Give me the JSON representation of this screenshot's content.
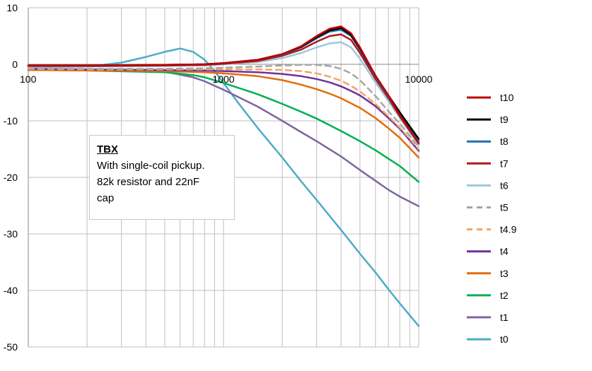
{
  "chart_data": {
    "type": "line",
    "x_scale": "log",
    "xlim": [
      100,
      10000
    ],
    "ylim": [
      -50,
      10
    ],
    "x_ticks": [
      100,
      1000,
      10000
    ],
    "x_tick_labels": [
      "100",
      "1000",
      "10000"
    ],
    "y_ticks": [
      10,
      0,
      -10,
      -20,
      -30,
      -40,
      -50
    ],
    "y_tick_labels": [
      "10",
      "0",
      "-10",
      "-20",
      "-30",
      "-40",
      "-50"
    ],
    "grid": true,
    "legend_position": "right",
    "annotation": {
      "title": "TBX",
      "lines": [
        "With single-coil pickup.",
        "82k resistor and 22nF",
        "cap"
      ]
    },
    "series": [
      {
        "name": "t10",
        "color": "#c00000",
        "dash": false,
        "x": [
          100,
          200,
          500,
          800,
          1000,
          1500,
          2000,
          2500,
          3000,
          3500,
          4000,
          4500,
          5000,
          6000,
          7000,
          8000,
          10000
        ],
        "y": [
          -0.2,
          -0.2,
          -0.1,
          0.0,
          0.2,
          0.8,
          1.8,
          3.2,
          5.0,
          6.3,
          6.7,
          5.5,
          3.0,
          -2.0,
          -5.5,
          -9.0,
          -14.0
        ]
      },
      {
        "name": "t9",
        "color": "#000000",
        "dash": false,
        "x": [
          100,
          200,
          500,
          800,
          1000,
          1500,
          2000,
          2500,
          3000,
          3500,
          4000,
          4500,
          5000,
          6000,
          7000,
          8000,
          10000
        ],
        "y": [
          -0.2,
          -0.2,
          -0.1,
          0.0,
          0.2,
          0.8,
          1.8,
          3.1,
          4.8,
          6.0,
          6.4,
          5.2,
          2.8,
          -2.0,
          -5.5,
          -8.5,
          -13.2
        ]
      },
      {
        "name": "t8",
        "color": "#1f6fb4",
        "dash": false,
        "x": [
          100,
          200,
          500,
          800,
          1000,
          1500,
          2000,
          2500,
          3000,
          3500,
          4000,
          4500,
          5000,
          6000,
          7000,
          8000,
          10000
        ],
        "y": [
          -0.2,
          -0.2,
          -0.1,
          0.0,
          0.2,
          0.8,
          1.7,
          3.0,
          4.6,
          5.8,
          6.1,
          5.0,
          2.6,
          -2.2,
          -5.7,
          -8.8,
          -13.6
        ]
      },
      {
        "name": "t7",
        "color": "#b01818",
        "dash": false,
        "x": [
          100,
          200,
          500,
          800,
          1000,
          1500,
          2000,
          2500,
          3000,
          3500,
          4000,
          4500,
          5000,
          6000,
          7000,
          8000,
          10000
        ],
        "y": [
          -0.3,
          -0.3,
          -0.2,
          -0.1,
          0.1,
          0.6,
          1.5,
          2.6,
          4.0,
          5.0,
          5.3,
          4.3,
          2.0,
          -2.6,
          -6.0,
          -9.2,
          -14.0
        ]
      },
      {
        "name": "t6",
        "color": "#9dc8e0",
        "dash": false,
        "x": [
          100,
          200,
          500,
          800,
          1000,
          1500,
          2000,
          2500,
          3000,
          3500,
          4000,
          4500,
          5000,
          6000,
          7000,
          8000,
          10000
        ],
        "y": [
          -0.4,
          -0.4,
          -0.3,
          -0.2,
          0.0,
          0.4,
          1.1,
          2.0,
          3.0,
          3.7,
          3.9,
          3.0,
          1.0,
          -3.2,
          -6.5,
          -9.5,
          -14.3
        ]
      },
      {
        "name": "t5",
        "color": "#a6a6a6",
        "dash": true,
        "x": [
          100,
          200,
          500,
          800,
          1000,
          1500,
          2000,
          2500,
          3000,
          3500,
          4000,
          4500,
          5000,
          6000,
          7000,
          8000,
          10000
        ],
        "y": [
          -0.7,
          -0.8,
          -0.8,
          -0.7,
          -0.6,
          -0.4,
          -0.2,
          -0.1,
          -0.1,
          -0.3,
          -0.8,
          -1.6,
          -2.8,
          -5.6,
          -8.3,
          -10.5,
          -14.6
        ]
      },
      {
        "name": "t4.9",
        "color": "#f4a460",
        "dash": true,
        "x": [
          100,
          200,
          500,
          800,
          1000,
          1500,
          2000,
          2500,
          3000,
          3500,
          4000,
          4500,
          5000,
          6000,
          7000,
          8000,
          10000
        ],
        "y": [
          -0.8,
          -0.9,
          -0.9,
          -0.9,
          -0.9,
          -0.9,
          -1.0,
          -1.2,
          -1.6,
          -2.2,
          -2.9,
          -3.8,
          -4.8,
          -7.0,
          -9.2,
          -11.2,
          -15.0
        ]
      },
      {
        "name": "t4",
        "color": "#7030a0",
        "dash": false,
        "x": [
          100,
          200,
          500,
          800,
          1000,
          1500,
          2000,
          2500,
          3000,
          3500,
          4000,
          4500,
          5000,
          6000,
          7000,
          8000,
          10000
        ],
        "y": [
          -0.8,
          -0.9,
          -1.0,
          -1.1,
          -1.2,
          -1.4,
          -1.7,
          -2.1,
          -2.6,
          -3.2,
          -3.9,
          -4.7,
          -5.5,
          -7.4,
          -9.5,
          -11.4,
          -15.3
        ]
      },
      {
        "name": "t3",
        "color": "#e46c0a",
        "dash": false,
        "x": [
          100,
          200,
          500,
          800,
          1000,
          1500,
          2000,
          2500,
          3000,
          3500,
          4000,
          4500,
          5000,
          6000,
          7000,
          8000,
          10000
        ],
        "y": [
          -1.0,
          -1.1,
          -1.2,
          -1.4,
          -1.6,
          -2.1,
          -2.8,
          -3.6,
          -4.4,
          -5.2,
          -6.0,
          -6.9,
          -7.7,
          -9.5,
          -11.3,
          -13.0,
          -16.5
        ]
      },
      {
        "name": "t2",
        "color": "#00b050",
        "dash": false,
        "x": [
          100,
          200,
          500,
          700,
          800,
          1000,
          1500,
          2000,
          2500,
          3000,
          4000,
          5000,
          6000,
          7000,
          8000,
          10000
        ],
        "y": [
          -1.0,
          -1.1,
          -1.4,
          -1.9,
          -2.3,
          -3.3,
          -5.3,
          -7.0,
          -8.4,
          -9.6,
          -11.8,
          -13.6,
          -15.2,
          -16.7,
          -18.0,
          -20.8
        ]
      },
      {
        "name": "t1",
        "color": "#8064a2",
        "dash": false,
        "x": [
          100,
          200,
          500,
          700,
          800,
          1000,
          1500,
          2000,
          2500,
          3000,
          4000,
          5000,
          6000,
          7000,
          8000,
          10000
        ],
        "y": [
          -1.0,
          -1.0,
          -1.3,
          -2.3,
          -3.0,
          -4.5,
          -7.5,
          -10.0,
          -12.0,
          -13.6,
          -16.3,
          -18.7,
          -20.6,
          -22.2,
          -23.4,
          -25.1
        ]
      },
      {
        "name": "t0",
        "color": "#4bacc6",
        "dash": false,
        "x": [
          100,
          200,
          300,
          400,
          500,
          600,
          700,
          800,
          900,
          1000,
          1200,
          1500,
          2000,
          2500,
          3000,
          4000,
          5000,
          6000,
          7000,
          8000,
          10000
        ],
        "y": [
          -0.5,
          -0.4,
          0.3,
          1.3,
          2.2,
          2.8,
          2.2,
          0.8,
          -1.2,
          -3.3,
          -7.0,
          -11.3,
          -16.5,
          -20.7,
          -24.0,
          -29.3,
          -33.5,
          -36.8,
          -39.8,
          -42.3,
          -46.3
        ]
      }
    ]
  }
}
